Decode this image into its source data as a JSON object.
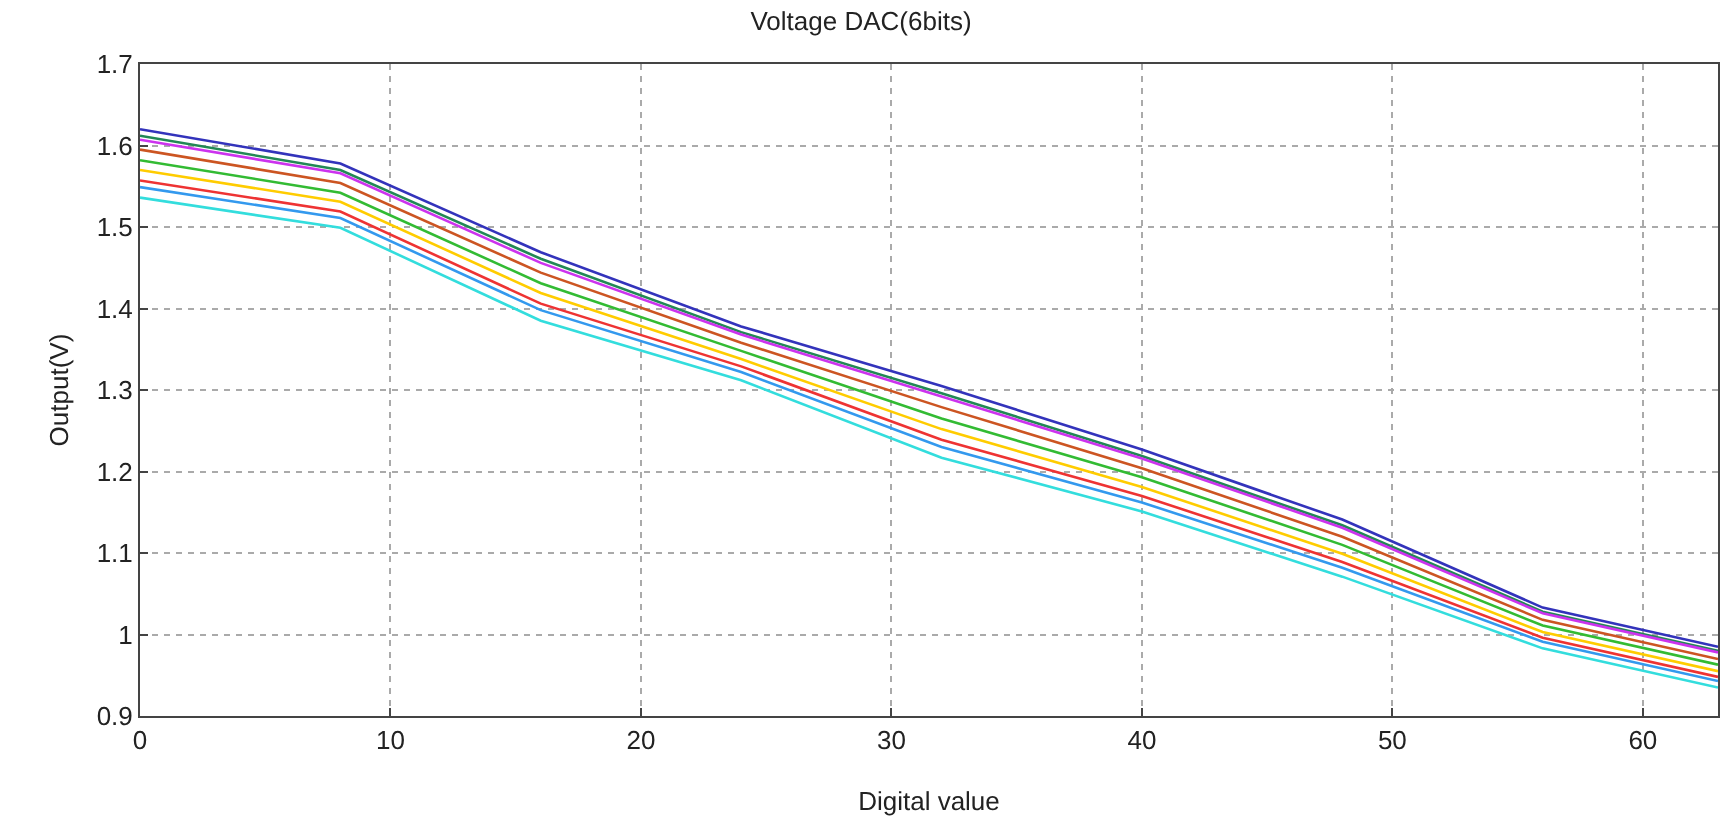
{
  "chart_data": {
    "type": "line",
    "title": "Voltage DAC(6bits)",
    "xlabel": "Digital value",
    "ylabel": "Output(V)",
    "x": [
      0,
      8,
      16,
      24,
      32,
      40,
      48,
      56,
      63
    ],
    "xlim": [
      0,
      63
    ],
    "xticks": [
      0,
      10,
      20,
      30,
      40,
      50,
      60
    ],
    "ylim": [
      0.9,
      1.7
    ],
    "yticks": [
      0.9,
      1,
      1.1,
      1.2,
      1.3,
      1.4,
      1.5,
      1.6,
      1.7
    ],
    "grid": true,
    "marker": "none",
    "line_style": "solid",
    "series": [
      {
        "color": "#3333bb",
        "values": [
          1.62,
          1.578,
          1.469,
          1.378,
          1.305,
          1.227,
          1.141,
          1.033,
          0.985
        ]
      },
      {
        "color": "#228855",
        "values": [
          1.612,
          1.57,
          1.461,
          1.371,
          1.296,
          1.219,
          1.134,
          1.028,
          0.98
        ]
      },
      {
        "color": "#cc33ee",
        "values": [
          1.607,
          1.566,
          1.456,
          1.368,
          1.292,
          1.216,
          1.131,
          1.026,
          0.978
        ]
      },
      {
        "color": "#cc5522",
        "values": [
          1.595,
          1.554,
          1.444,
          1.358,
          1.279,
          1.204,
          1.12,
          1.018,
          0.97
        ]
      },
      {
        "color": "#33bb33",
        "values": [
          1.582,
          1.542,
          1.431,
          1.348,
          1.265,
          1.193,
          1.11,
          1.011,
          0.963
        ]
      },
      {
        "color": "#ffcc00",
        "values": [
          1.57,
          1.531,
          1.419,
          1.338,
          1.252,
          1.181,
          1.099,
          1.003,
          0.955
        ]
      },
      {
        "color": "#ee3333",
        "values": [
          1.557,
          1.519,
          1.406,
          1.329,
          1.239,
          1.17,
          1.089,
          0.996,
          0.948
        ]
      },
      {
        "color": "#3399ee",
        "values": [
          1.549,
          1.511,
          1.398,
          1.322,
          1.23,
          1.162,
          1.082,
          0.991,
          0.943
        ]
      },
      {
        "color": "#33dddd",
        "values": [
          1.536,
          1.499,
          1.385,
          1.312,
          1.217,
          1.151,
          1.071,
          0.983,
          0.935
        ]
      }
    ]
  }
}
